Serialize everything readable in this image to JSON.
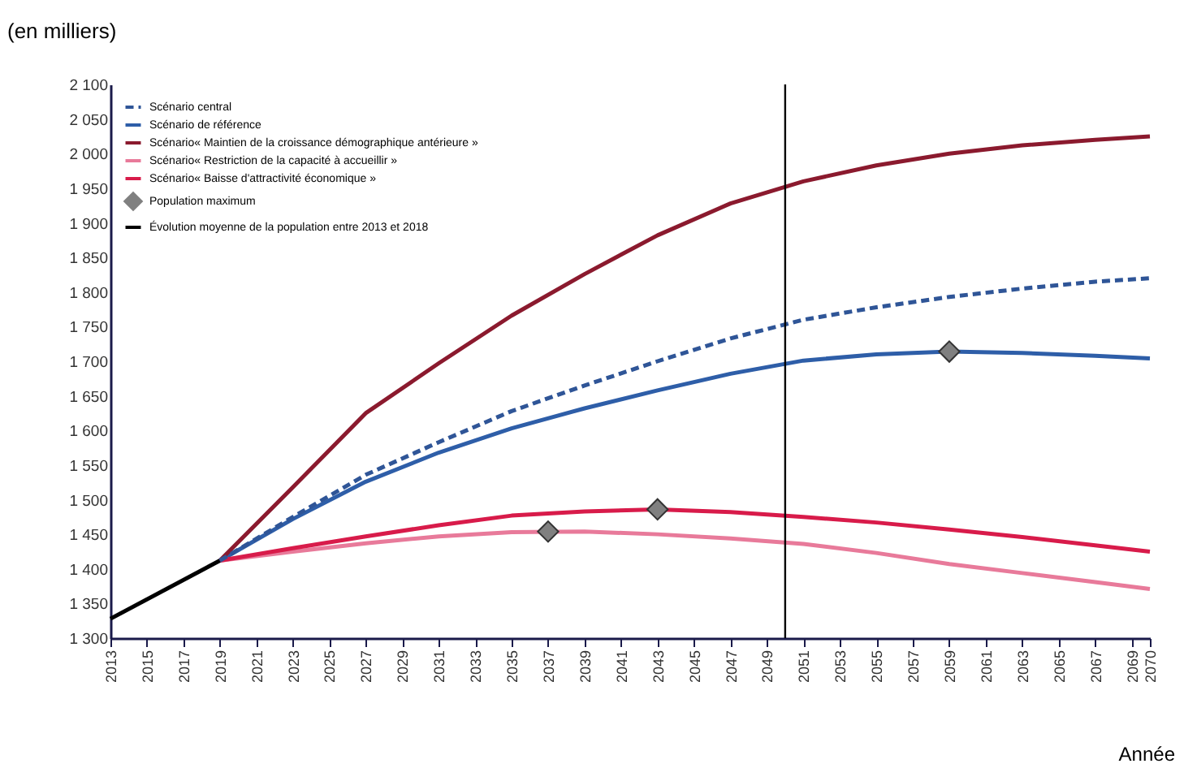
{
  "chart_data": {
    "type": "line",
    "ylabel": "(en milliers)",
    "xlabel": "Année",
    "xlim": [
      2013,
      2070
    ],
    "xticks": [
      2013,
      2015,
      2017,
      2019,
      2021,
      2023,
      2025,
      2027,
      2029,
      2031,
      2033,
      2035,
      2037,
      2039,
      2041,
      2043,
      2045,
      2047,
      2049,
      2051,
      2053,
      2055,
      2057,
      2059,
      2061,
      2063,
      2065,
      2067,
      2069,
      2070
    ],
    "ylim": [
      1300,
      2100
    ],
    "yticks": [
      {
        "value": 1300,
        "label": "1 300"
      },
      {
        "value": 1350,
        "label": "1 350"
      },
      {
        "value": 1400,
        "label": "1 400"
      },
      {
        "value": 1450,
        "label": "1 450"
      },
      {
        "value": 1500,
        "label": "1 500"
      },
      {
        "value": 1550,
        "label": "1 550"
      },
      {
        "value": 1600,
        "label": "1 600"
      },
      {
        "value": 1650,
        "label": "1 650"
      },
      {
        "value": 1700,
        "label": "1 700"
      },
      {
        "value": 1750,
        "label": "1 750"
      },
      {
        "value": 1800,
        "label": "1 800"
      },
      {
        "value": 1850,
        "label": "1 850"
      },
      {
        "value": 1900,
        "label": "1 900"
      },
      {
        "value": 1950,
        "label": "1 950"
      },
      {
        "value": 2000,
        "label": "2 000"
      },
      {
        "value": 2050,
        "label": "2 050"
      },
      {
        "value": 2100,
        "label": "2 100"
      }
    ],
    "grid": false,
    "legend": "top left",
    "line_style": "solid",
    "ref_lines": [
      {
        "axis": "x",
        "value": 2050,
        "color": "#000000"
      }
    ],
    "series": [
      {
        "name": "Scénario central",
        "color": "#2f5597",
        "line_style": "dashed",
        "x": [
          2019,
          2023,
          2027,
          2031,
          2035,
          2039,
          2043,
          2047,
          2051,
          2055,
          2059,
          2063,
          2067,
          2070
        ],
        "values": [
          1412,
          1475,
          1536,
          1583,
          1628,
          1665,
          1700,
          1733,
          1760,
          1778,
          1793,
          1805,
          1815,
          1820
        ]
      },
      {
        "name": "Scénario de référence",
        "color": "#2e5ea8",
        "x": [
          2019,
          2023,
          2027,
          2031,
          2035,
          2039,
          2043,
          2047,
          2051,
          2055,
          2059,
          2063,
          2067,
          2070
        ],
        "values": [
          1412,
          1472,
          1526,
          1568,
          1603,
          1632,
          1658,
          1682,
          1701,
          1710,
          1714,
          1712,
          1708,
          1704
        ]
      },
      {
        "name": "Scénario« Maintien de la croissance démographique antérieure »",
        "color": "#8b1a2e",
        "x": [
          2019,
          2023,
          2027,
          2031,
          2035,
          2039,
          2043,
          2047,
          2051,
          2055,
          2059,
          2063,
          2067,
          2070
        ],
        "values": [
          1412,
          1518,
          1625,
          1697,
          1766,
          1826,
          1882,
          1928,
          1960,
          1983,
          2000,
          2012,
          2020,
          2025
        ]
      },
      {
        "name": "Scénario« Restriction de la capacité à accueillir »",
        "color": "#e87a9a",
        "x": [
          2019,
          2023,
          2027,
          2031,
          2035,
          2039,
          2043,
          2047,
          2051,
          2055,
          2059,
          2063,
          2067,
          2070
        ],
        "values": [
          1412,
          1425,
          1437,
          1447,
          1453,
          1454,
          1450,
          1444,
          1436,
          1423,
          1407,
          1394,
          1381,
          1371
        ]
      },
      {
        "name": "Scénario« Baisse d'attractivité économique »",
        "color": "#d81b4a",
        "x": [
          2019,
          2023,
          2027,
          2031,
          2035,
          2039,
          2043,
          2047,
          2051,
          2055,
          2059,
          2063,
          2067,
          2070
        ],
        "values": [
          1412,
          1430,
          1447,
          1463,
          1477,
          1483,
          1486,
          1482,
          1475,
          1467,
          1457,
          1446,
          1434,
          1425
        ]
      },
      {
        "name": "Population maximum",
        "type": "scatter",
        "marker": "diamond",
        "color": "#808080",
        "x": [
          2037,
          2043,
          2059
        ],
        "values": [
          1454,
          1486,
          1714
        ]
      },
      {
        "name": "Évolution moyenne de la population entre 2013 et 2018",
        "color": "#000000",
        "x": [
          2013,
          2019
        ],
        "values": [
          1328,
          1412
        ]
      }
    ]
  }
}
